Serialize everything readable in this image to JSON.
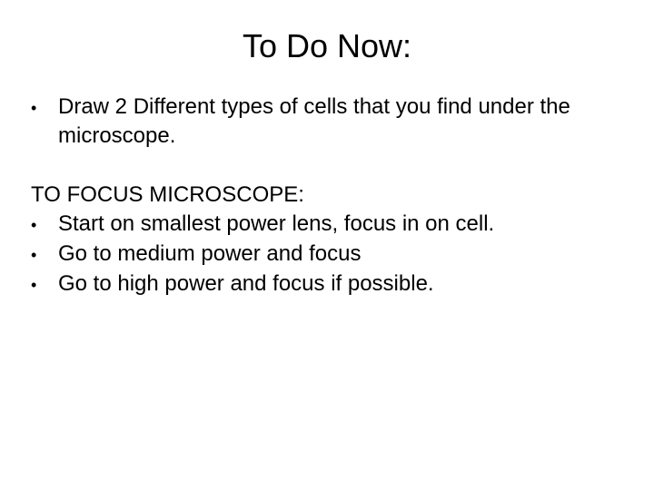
{
  "title": "To Do Now:",
  "bullets": {
    "b1": "Draw 2 Different types of cells that you find under the microscope.",
    "heading": "TO FOCUS MICROSCOPE:",
    "b2": "Start on smallest power lens, focus in on cell.",
    "b3": "Go to medium power and focus",
    "b4": "Go to high power and focus if possible."
  },
  "style": {
    "background_color": "#ffffff",
    "text_color": "#000000",
    "title_fontsize": 36,
    "body_fontsize": 24,
    "font_family": "Arial",
    "bullet_glyph": "•",
    "slide_width": 720,
    "slide_height": 540
  }
}
